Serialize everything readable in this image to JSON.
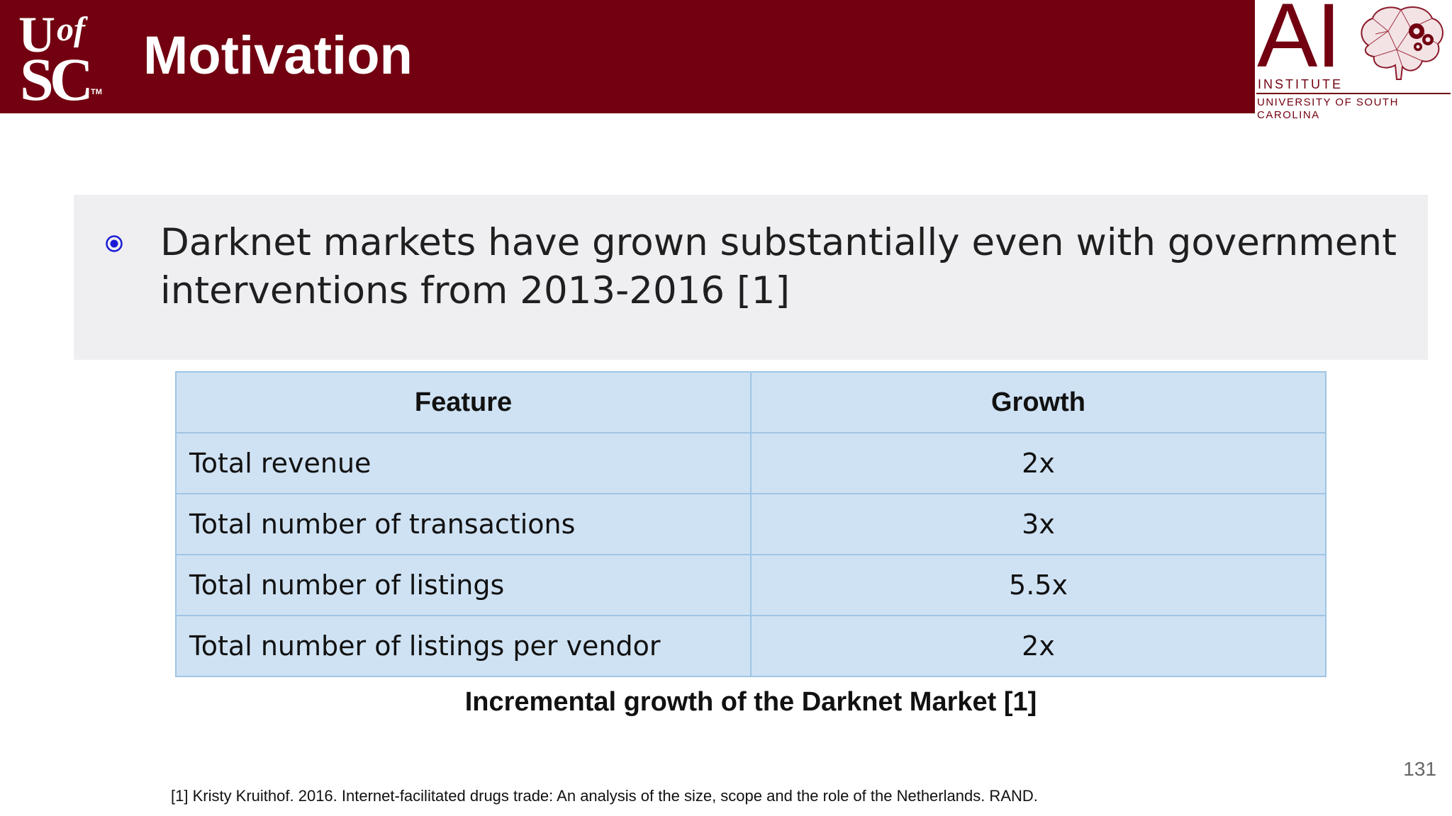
{
  "header": {
    "logo_text": "UofSC",
    "title": "Motivation"
  },
  "institute_logo": {
    "mark": "AI",
    "line1": "INSTITUTE",
    "line2": "UNIVERSITY OF SOUTH CAROLINA",
    "icon": "brain-gears-icon"
  },
  "bullet": {
    "icon": "radio-bullet-icon",
    "text": "Darknet markets have grown substantially even with government interventions from 2013-2016 [1]"
  },
  "table": {
    "headers": [
      "Feature",
      "Growth"
    ],
    "rows": [
      {
        "feature": "Total revenue",
        "growth": "2x"
      },
      {
        "feature": "Total number of transactions",
        "growth": "3x"
      },
      {
        "feature": "Total number of listings",
        "growth": "5.5x"
      },
      {
        "feature": "Total number of listings per vendor",
        "growth": "2x"
      }
    ],
    "caption": "Incremental growth of the Darknet Market [1]"
  },
  "page_number": "131",
  "footnote": "[1]  Kristy Kruithof. 2016. Internet-facilitated drugs trade: An analysis of the size, scope and the role of the Netherlands. RAND.",
  "colors": {
    "header_bg": "#720010",
    "panel_bg": "#efeef1",
    "table_cell": "#cfe2f3",
    "table_border": "#9fc5e5",
    "bullet": "#1a1ad6"
  }
}
